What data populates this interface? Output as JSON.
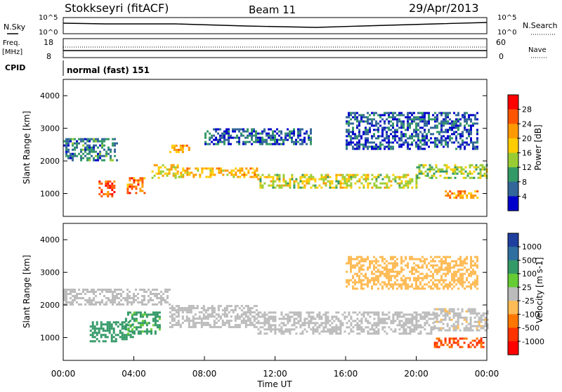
{
  "header": {
    "station": "Stokkseyri (fitACF)",
    "beam": "Beam 11",
    "date": "29/Apr/2013"
  },
  "top_panels": {
    "nsky_label": "N.Sky",
    "nsearch_label": "N.Search",
    "left_top_tick": "10^5",
    "left_bottom_tick": "10^0",
    "right_top_tick": "10^5",
    "right_bottom_tick": "10^0",
    "freq_label_1": "Freq.",
    "freq_label_2": "[MHz]",
    "freq_ticks": [
      "18",
      "8"
    ],
    "nave_label": "Nave",
    "nave_ticks": [
      "60",
      "0"
    ],
    "cpid_label": "CPID",
    "cpid_value": "normal (fast) 151"
  },
  "chart_data": [
    {
      "type": "heatmap",
      "title": "",
      "xlabel": "",
      "ylabel": "Slant Range [km]",
      "xlim": [
        0,
        24
      ],
      "ylim": [
        300,
        4500
      ],
      "y_ticks": [
        "1000",
        "2000",
        "3000",
        "4000"
      ],
      "colorbar_label": "Power [dB]",
      "colorbar_ticks": [
        "28",
        "24",
        "20",
        "16",
        "12",
        "8",
        "4"
      ],
      "colorbar_colors": [
        "#ff0000",
        "#ff5500",
        "#ff9900",
        "#ffcc00",
        "#99cc33",
        "#339966",
        "#336699",
        "#0000cc"
      ],
      "regions": [
        {
          "t0": 2.0,
          "t1": 2.9,
          "r0": 900,
          "r1": 1400,
          "v": 26
        },
        {
          "t0": 3.6,
          "t1": 4.6,
          "r0": 1000,
          "r1": 1500,
          "v": 24
        },
        {
          "t0": 6.0,
          "t1": 7.2,
          "r0": 2300,
          "r1": 2500,
          "v": 22
        },
        {
          "t0": 5.0,
          "t1": 6.5,
          "r0": 1500,
          "r1": 1900,
          "v": 18
        },
        {
          "t0": 6.5,
          "t1": 11.0,
          "r0": 1500,
          "r1": 1800,
          "v": 20
        },
        {
          "t0": 11.0,
          "t1": 20.0,
          "r0": 1200,
          "r1": 1600,
          "v": 16
        },
        {
          "t0": 20.0,
          "t1": 24.0,
          "r0": 1500,
          "r1": 1900,
          "v": 14
        },
        {
          "t0": 21.5,
          "t1": 23.5,
          "r0": 900,
          "r1": 1100,
          "v": 22
        },
        {
          "t0": 0.0,
          "t1": 3.0,
          "r0": 2000,
          "r1": 2700,
          "v": 8
        },
        {
          "t0": 8.0,
          "t1": 14.0,
          "r0": 2500,
          "r1": 3000,
          "v": 6
        },
        {
          "t0": 16.0,
          "t1": 23.5,
          "r0": 2400,
          "r1": 3500,
          "v": 5
        }
      ]
    },
    {
      "type": "heatmap",
      "title": "",
      "xlabel": "Time UT",
      "ylabel": "Slant Range [km]",
      "xlim": [
        0,
        24
      ],
      "ylim": [
        300,
        4500
      ],
      "x_ticks": [
        "00:00",
        "04:00",
        "08:00",
        "12:00",
        "16:00",
        "20:00",
        "00:00"
      ],
      "y_ticks": [
        "1000",
        "2000",
        "3000",
        "4000"
      ],
      "colorbar_label": "Velocity [m s-1]",
      "colorbar_ticks": [
        "1000",
        "500",
        "100",
        "25",
        "-25",
        "-100",
        "-500",
        "-1000"
      ],
      "colorbar_colors": [
        "#1f3f9f",
        "#2f6f9f",
        "#339966",
        "#66cc33",
        "#bbbbbb",
        "#ffbb55",
        "#ff7700",
        "#ff3300",
        "#ff0000"
      ],
      "regions": [
        {
          "t0": 0.0,
          "t1": 6.0,
          "r0": 2000,
          "r1": 2500,
          "v": 0
        },
        {
          "t0": 1.5,
          "t1": 4.0,
          "r0": 900,
          "r1": 1500,
          "v": 300
        },
        {
          "t0": 3.5,
          "t1": 5.5,
          "r0": 1100,
          "r1": 1800,
          "v": 150
        },
        {
          "t0": 6.0,
          "t1": 11.0,
          "r0": 1300,
          "r1": 2000,
          "v": 0
        },
        {
          "t0": 11.0,
          "t1": 21.0,
          "r0": 1100,
          "r1": 1800,
          "v": 0
        },
        {
          "t0": 21.0,
          "t1": 24.0,
          "r0": 1200,
          "r1": 1900,
          "v": -10
        },
        {
          "t0": 21.0,
          "t1": 23.8,
          "r0": 700,
          "r1": 1000,
          "v": -600
        },
        {
          "t0": 16.0,
          "t1": 23.5,
          "r0": 2500,
          "r1": 3500,
          "v": -50
        }
      ]
    }
  ]
}
